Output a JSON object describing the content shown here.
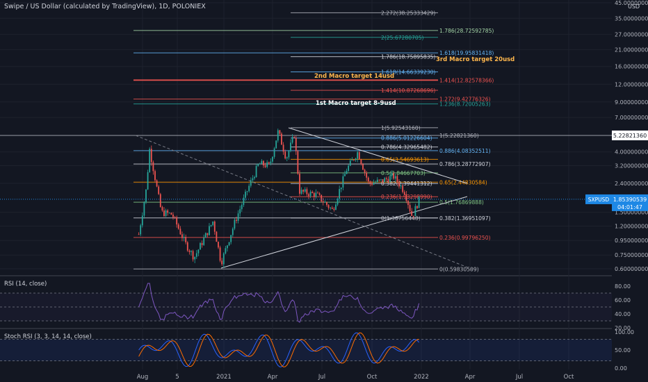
{
  "header": {
    "title": "Swipe / US Dollar (calculated by TradingView), 1D, POLONIEX"
  },
  "price_axis": {
    "currency": "USD",
    "ticks": [
      "45.00000000",
      "35.00000000",
      "27.00000000",
      "21.00000000",
      "16.00000000",
      "12.00000000",
      "9.00000000",
      "7.00000000",
      "5.22821360",
      "4.00000000",
      "3.20000000",
      "2.40000000",
      "1.85390539",
      "1.50000000",
      "1.20000000",
      "0.95000000",
      "0.75000000",
      "0.60000000"
    ],
    "last_price_tag": {
      "symbol": "SXPUSD",
      "price": "1.85390539",
      "countdown": "04:01:47",
      "color": "#1e88e5"
    },
    "crosshair_tag": "5.22821360"
  },
  "time_axis": {
    "ticks": [
      "Aug",
      "5",
      "2021",
      "Apr",
      "Jul",
      "Oct",
      "2022",
      "Apr",
      "Jul",
      "Oct"
    ]
  },
  "rsi_pane": {
    "label": "RSI (14, close)",
    "ticks": [
      "80.00",
      "60.00",
      "40.00",
      "20.00"
    ],
    "line_color": "#7e57c2"
  },
  "stoch_pane": {
    "label": "Stoch RSI (3, 3, 14, 14, close)",
    "ticks": [
      "100.00",
      "50.00",
      "0.00"
    ],
    "k_color": "#2962ff",
    "d_color": "#ff6d00"
  },
  "fib_levels": [
    {
      "label": "2.272(38.25333429)",
      "value": 38.2533,
      "color": "#b2b5be"
    },
    {
      "label": "1.786(28.72592785)",
      "value": 28.7259,
      "color": "#a5d6a7"
    },
    {
      "label": "2(25.67280705)",
      "value": 25.6728,
      "color": "#26a69a"
    },
    {
      "label": "1.618(19.95831418)",
      "value": 19.9583,
      "color": "#64b5f6"
    },
    {
      "label": "1.786(18.75895835)",
      "value": 18.759,
      "color": "#d1d4dc"
    },
    {
      "label": "1.618(14.66339230)",
      "value": 14.6634,
      "color": "#64b5f6"
    },
    {
      "label": "1.414(12.82578366)",
      "value": 12.8258,
      "color": "#ef5350"
    },
    {
      "label": "1.414(10.87268696)",
      "value": 10.8727,
      "color": "#ef5350"
    },
    {
      "label": "1.272(9.42776326)",
      "value": 9.4278,
      "color": "#ef5350"
    },
    {
      "label": "1.236(8.72005263)",
      "value": 8.7201,
      "color": "#26a69a"
    },
    {
      "label": "1(5.92543160)",
      "value": 5.9254,
      "color": "#b2b5be"
    },
    {
      "label": "1(5.22821360)",
      "value": 5.2282,
      "color": "#b2b5be"
    },
    {
      "label": "0.886(5.01226604)",
      "value": 5.0123,
      "color": "#64b5f6"
    },
    {
      "label": "0.786(4.32965482)",
      "value": 4.3297,
      "color": "#d1d4dc"
    },
    {
      "label": "0.886(4.08352511)",
      "value": 4.0835,
      "color": "#64b5f6"
    },
    {
      "label": "0.65(3.54693613)",
      "value": 3.5469,
      "color": "#ff9800"
    },
    {
      "label": "0.786(3.28772907)",
      "value": 3.2877,
      "color": "#d1d4dc"
    },
    {
      "label": "0.5(2.84667703)",
      "value": 2.8467,
      "color": "#81c784"
    },
    {
      "label": "0.65(2.44830584)",
      "value": 2.4483,
      "color": "#ff9800"
    },
    {
      "label": "0.382(2.39441312)",
      "value": 2.3944,
      "color": "#d1d4dc"
    },
    {
      "label": "0.236(1.93298990)",
      "value": 1.933,
      "color": "#ef5350"
    },
    {
      "label": "0.5(1.76869888)",
      "value": 1.7687,
      "color": "#81c784"
    },
    {
      "label": "0(1.36756448)",
      "value": 1.3676,
      "color": "#b2b5be"
    },
    {
      "label": "0.382(1.36951097)",
      "value": 1.3695,
      "color": "#d1d4dc"
    },
    {
      "label": "0.236(0.99796250)",
      "value": 0.998,
      "color": "#ef5350"
    },
    {
      "label": "0(0.59830509)",
      "value": 0.5983,
      "color": "#b2b5be"
    }
  ],
  "annotations": [
    {
      "text": "3rd Macro target 20usd",
      "color": "#ffb74d"
    },
    {
      "text": "2nd Macro target 14usd",
      "color": "#ffb74d"
    },
    {
      "text": "1st Macro target 8-9usd",
      "color": "#ffffff"
    }
  ],
  "chart_data": {
    "type": "candlestick",
    "symbol": "SXPUSD",
    "interval": "1D",
    "exchange": "POLONIEX",
    "y_scale": "log",
    "ylim": [
      0.6,
      45
    ],
    "x_range": [
      "2020-07",
      "2022-12"
    ],
    "price_path": [
      [
        "2020-07-25",
        1.05
      ],
      [
        "2020-08-08",
        2.2
      ],
      [
        "2020-08-14",
        4.2
      ],
      [
        "2020-08-20",
        3.2
      ],
      [
        "2020-09-05",
        1.5
      ],
      [
        "2020-09-25",
        1.45
      ],
      [
        "2020-10-20",
        0.9
      ],
      [
        "2020-11-05",
        0.72
      ],
      [
        "2020-12-10",
        1.3
      ],
      [
        "2020-12-25",
        0.66
      ],
      [
        "2021-01-20",
        1.3
      ],
      [
        "2021-02-15",
        2.3
      ],
      [
        "2021-03-05",
        3.3
      ],
      [
        "2021-03-25",
        3.2
      ],
      [
        "2021-04-10",
        5.6
      ],
      [
        "2021-04-25",
        3.6
      ],
      [
        "2021-05-10",
        5.3
      ],
      [
        "2021-05-20",
        2.1
      ],
      [
        "2021-06-20",
        2.0
      ],
      [
        "2021-07-20",
        1.55
      ],
      [
        "2021-08-15",
        3.0
      ],
      [
        "2021-09-05",
        4.0
      ],
      [
        "2021-09-25",
        2.4
      ],
      [
        "2021-10-20",
        2.5
      ],
      [
        "2021-11-10",
        2.7
      ],
      [
        "2021-12-01",
        2.1
      ],
      [
        "2021-12-15",
        1.4
      ],
      [
        "2021-12-28",
        1.85
      ]
    ],
    "last_price": 1.85390539,
    "rsi": {
      "ylim": [
        20,
        90
      ],
      "levels": [
        70,
        50,
        30
      ]
    },
    "stoch_rsi": {
      "ylim": [
        0,
        100
      ],
      "levels": [
        80,
        20
      ]
    }
  }
}
